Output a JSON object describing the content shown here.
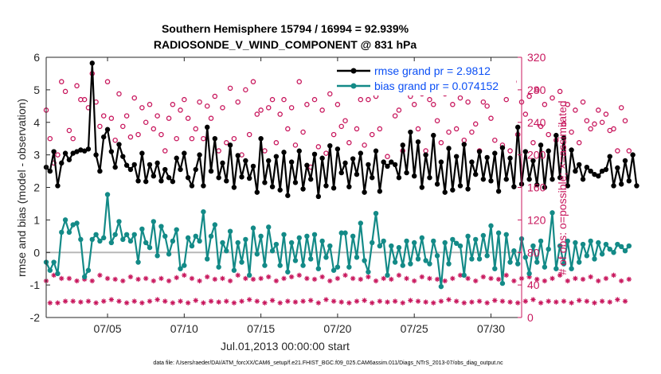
{
  "chart_data": {
    "type": "line",
    "title": "Southern Hemisphere 15794 / 16994 = 92.939%",
    "subtitle": "RADIOSONDE_V_WIND_COMPONENT @ 831 hPa",
    "xlabel": "Jul.01,2013 00:00:00 start",
    "ylabel": "rmse and bias (model - observation)",
    "ylabel_right": "# of obs: o=possible; ×=assimilated",
    "ylim": [
      -2,
      6
    ],
    "ylim_right": [
      0,
      320
    ],
    "xlim": [
      1,
      32
    ],
    "yticks": [
      "-2",
      "-1",
      "0",
      "1",
      "2",
      "3",
      "4",
      "5",
      "6"
    ],
    "yticks_right": [
      "0",
      "40",
      "80",
      "120",
      "160",
      "200",
      "240",
      "280",
      "320"
    ],
    "xticks": [
      {
        "day": 5,
        "label": "07/05"
      },
      {
        "day": 10,
        "label": "07/10"
      },
      {
        "day": 15,
        "label": "07/15"
      },
      {
        "day": 20,
        "label": "07/20"
      },
      {
        "day": 25,
        "label": "07/25"
      },
      {
        "day": 30,
        "label": "07/30"
      }
    ],
    "legend": [
      {
        "label": "rmse grand pr = 2.9812",
        "color": "#000000"
      },
      {
        "label": "bias grand pr = 0.074152",
        "color": "#138a87"
      }
    ],
    "footer": "data file: /Users/raeder/DAI/ATM_forcXX/CAM6_setup/f.e21.FHIST_BGC.f09_025.CAM6assim.011/Diags_NTrS_2013-07/obs_diag_output.nc",
    "x_start": 1.0,
    "x_step": 0.25,
    "series": [
      {
        "name": "rmse",
        "color": "#000000",
        "values": [
          2.62,
          2.5,
          3.1,
          2.05,
          2.75,
          3.05,
          2.85,
          3.05,
          3.1,
          3.15,
          3.12,
          3.18,
          5.82,
          3.0,
          2.5,
          3.55,
          3.78,
          3.1,
          2.62,
          3.32,
          2.95,
          2.68,
          2.55,
          2.7,
          2.2,
          3.05,
          2.18,
          2.7,
          2.35,
          2.75,
          2.2,
          2.55,
          2.3,
          2.18,
          2.9,
          2.55,
          3.05,
          2.3,
          2.05,
          2.55,
          3.0,
          2.05,
          3.85,
          2.5,
          3.5,
          2.3,
          2.75,
          2.2,
          3.3,
          2.0,
          2.98,
          2.32,
          2.82,
          2.28,
          2.65,
          1.85,
          3.5,
          2.15,
          2.82,
          2.02,
          2.95,
          1.92,
          3.08,
          1.75,
          2.78,
          2.15,
          3.12,
          1.95,
          2.68,
          2.25,
          3.02,
          1.72,
          2.9,
          2.05,
          3.28,
          1.98,
          3.18,
          2.45,
          2.75,
          2.02,
          2.88,
          2.4,
          3.05,
          1.85,
          2.7,
          2.3,
          3.12,
          1.88,
          2.78,
          2.65,
          2.78,
          2.7,
          2.3,
          3.3,
          2.45,
          3.7,
          2.35,
          3.4,
          2.0,
          3.0,
          2.3,
          3.6,
          2.1,
          2.78,
          1.85,
          3.2,
          1.92,
          2.95,
          2.05,
          3.32,
          1.95,
          2.78,
          2.4,
          3.1,
          2.25,
          2.92,
          2.2,
          3.05,
          1.88,
          3.22,
          2.25,
          2.9,
          2.02,
          3.85,
          2.1,
          3.1,
          2.25,
          2.82,
          2.08,
          3.3,
          2.0,
          3.12,
          2.25,
          3.6,
          2.3,
          3.52,
          2.05,
          3.15,
          2.5,
          2.7,
          2.25,
          2.62,
          2.5,
          2.4,
          2.35,
          2.5,
          2.55,
          2.95,
          2.05,
          2.6,
          2.1,
          2.82,
          2.2,
          3.0,
          2.05
        ]
      },
      {
        "name": "bias",
        "color": "#138a87",
        "values": [
          -0.3,
          -0.55,
          -0.3,
          -0.65,
          0.62,
          1.0,
          0.62,
          0.85,
          0.9,
          0.4,
          -0.75,
          -0.55,
          0.4,
          0.55,
          0.35,
          0.45,
          1.78,
          0.3,
          0.55,
          0.95,
          0.4,
          0.55,
          0.35,
          0.55,
          -0.3,
          0.72,
          0.3,
          0.15,
          0.95,
          -0.1,
          0.8,
          0.5,
          -0.05,
          0.35,
          0.7,
          -0.5,
          -0.4,
          0.45,
          0.2,
          0.5,
          0.35,
          1.25,
          -0.2,
          0.5,
          0.85,
          -0.45,
          0.3,
          0.05,
          0.65,
          -0.55,
          0.3,
          -0.3,
          0.4,
          -0.7,
          0.75,
          -0.05,
          0.5,
          -0.4,
          0.78,
          0.05,
          0.25,
          -0.4,
          0.55,
          -0.6,
          0.3,
          -0.25,
          0.45,
          -0.4,
          0.5,
          -0.2,
          0.55,
          -0.5,
          0.35,
          -0.15,
          0.2,
          -0.55,
          -0.45,
          0.6,
          0.6,
          -0.45,
          0.5,
          -0.15,
          0.9,
          -0.25,
          -0.6,
          0.3,
          1.2,
          0.2,
          0.35,
          -0.7,
          0.2,
          -0.3,
          0.15,
          -0.4,
          0.35,
          -0.35,
          0.3,
          -0.2,
          0.45,
          -0.25,
          -0.35,
          0.35,
          -0.1,
          -1.05,
          0.3,
          -0.35,
          0.4,
          0.28,
          0.2,
          -0.7,
          0.5,
          -0.2,
          0.4,
          -0.2,
          0.52,
          -0.1,
          0.82,
          -0.5,
          0.6,
          -0.95,
          0.55,
          -0.3,
          0.05,
          -0.35,
          0.42,
          -0.15,
          -0.65,
          0.2,
          -0.3,
          0.35,
          -0.45,
          0.1,
          1.22,
          -0.5,
          0.2,
          -0.35,
          0.35,
          -0.5,
          0.3,
          -0.3,
          0.25,
          -0.1,
          0.35,
          -0.2,
          0.3,
          -0.05,
          0.25,
          0.1,
          0.0,
          0.25,
          0.18,
          0.05,
          0.2
        ]
      }
    ],
    "obs_possible": [
      255,
      220,
      190,
      200,
      290,
      278,
      230,
      220,
      285,
      268,
      268,
      258,
      300,
      265,
      235,
      248,
      290,
      245,
      218,
      275,
      235,
      248,
      222,
      270,
      225,
      258,
      240,
      262,
      232,
      248,
      225,
      205,
      245,
      262,
      220,
      255,
      268,
      245,
      220,
      232,
      265,
      220,
      260,
      245,
      272,
      205,
      258,
      215,
      282,
      220,
      265,
      200,
      280,
      225,
      290,
      250,
      255,
      205,
      258,
      268,
      215,
      250,
      268,
      232,
      258,
      212,
      290,
      228,
      262,
      185,
      268,
      210,
      255,
      202,
      275,
      225,
      262,
      235,
      242,
      215,
      278,
      232,
      268,
      212,
      268,
      225,
      272,
      232,
      280,
      198,
      280,
      248,
      255,
      205,
      285,
      272,
      262,
      232,
      275,
      205,
      268,
      262,
      242,
      215,
      275,
      228,
      262,
      232,
      270,
      218,
      265,
      228,
      238,
      205,
      265,
      260,
      245,
      218,
      282,
      212,
      268,
      205,
      290,
      225,
      265,
      250,
      272,
      215,
      280,
      235,
      262,
      225,
      270,
      218,
      278,
      238,
      262,
      228,
      255,
      215,
      265,
      242,
      232,
      238,
      255,
      240,
      250,
      230,
      232,
      205,
      258,
      242,
      205
    ],
    "obs_assimilated": [
      45,
      18,
      52,
      18,
      48,
      20,
      48,
      20,
      45,
      19,
      47,
      20,
      45,
      18,
      52,
      20,
      48,
      22,
      47,
      20,
      45,
      18,
      50,
      20,
      47,
      18,
      48,
      20,
      45,
      22,
      48,
      20,
      45,
      18,
      49,
      20,
      52,
      18,
      48,
      21,
      45,
      18,
      50,
      20,
      47,
      19,
      48,
      20,
      45,
      18,
      52,
      20,
      48,
      22,
      47,
      20,
      48,
      18,
      50,
      21,
      45,
      18,
      48,
      20,
      50,
      19,
      52,
      20,
      48,
      21,
      47,
      18,
      50,
      22,
      45,
      20,
      48,
      19,
      52,
      18,
      48,
      20,
      47,
      21,
      50,
      18,
      45,
      20,
      48,
      19,
      47,
      20,
      52,
      18,
      48,
      21,
      45,
      20,
      50,
      19,
      48,
      18,
      47,
      20,
      45,
      22,
      48,
      20,
      52,
      18,
      48,
      19,
      45,
      20,
      50,
      18,
      48,
      21,
      47,
      20,
      52,
      19,
      45,
      18,
      48,
      20,
      50,
      22,
      47,
      18,
      45,
      20,
      48,
      19,
      52,
      20,
      45,
      18,
      48,
      21,
      47,
      20,
      50,
      18,
      45,
      20,
      48,
      19,
      52,
      22,
      45,
      20,
      47
    ]
  }
}
